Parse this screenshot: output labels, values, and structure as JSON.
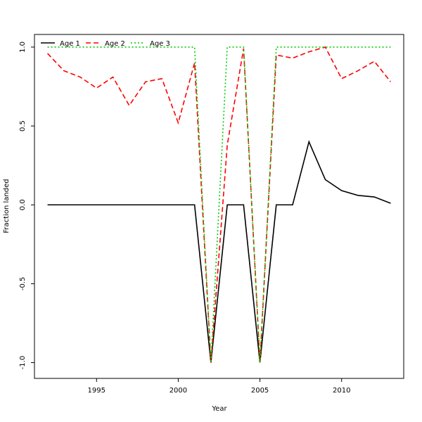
{
  "chart_data": {
    "type": "line",
    "title": "",
    "xlabel": "Year",
    "ylabel": "Fraction landed",
    "xlim": [
      1991.2,
      2013.8
    ],
    "ylim": [
      -1.1,
      1.08
    ],
    "xticks": [
      1995,
      2000,
      2005,
      2010
    ],
    "xtick_labels": [
      "1995",
      "2000",
      "2005",
      "2010"
    ],
    "yticks": [
      -1.0,
      -0.5,
      0.0,
      0.5,
      1.0
    ],
    "ytick_labels": [
      "-1.0",
      "-0.5",
      "0.0",
      "0.5",
      "1.0"
    ],
    "grid": false,
    "legend_position": "top-left",
    "x": [
      1992,
      1993,
      1994,
      1995,
      1996,
      1997,
      1998,
      1999,
      2000,
      2001,
      2002,
      2003,
      2004,
      2005,
      2006,
      2007,
      2008,
      2009,
      2010,
      2011,
      2012,
      2013
    ],
    "series": [
      {
        "name": "Age 1",
        "color": "#000000",
        "dash": "solid",
        "values": [
          0,
          0,
          0,
          0,
          0,
          0,
          0,
          0,
          0,
          0,
          -1,
          0,
          0,
          -1,
          0,
          0,
          0.4,
          0.16,
          0.09,
          0.06,
          0.05,
          0.01
        ]
      },
      {
        "name": "Age 2",
        "color": "#ff0000",
        "dash": "dashed",
        "values": [
          0.96,
          0.85,
          0.81,
          0.74,
          0.81,
          0.63,
          0.78,
          0.8,
          0.52,
          0.9,
          -1,
          0.38,
          0.99,
          -1,
          0.95,
          0.93,
          0.97,
          1.0,
          0.8,
          0.85,
          0.91,
          0.78
        ]
      },
      {
        "name": "Age 3",
        "color": "#00cd00",
        "dash": "dotted",
        "values": [
          1,
          1,
          1,
          1,
          1,
          1,
          1,
          1,
          1,
          1,
          -1,
          1,
          1,
          -1,
          1,
          1,
          1,
          1,
          1,
          1,
          1,
          1
        ]
      }
    ]
  }
}
